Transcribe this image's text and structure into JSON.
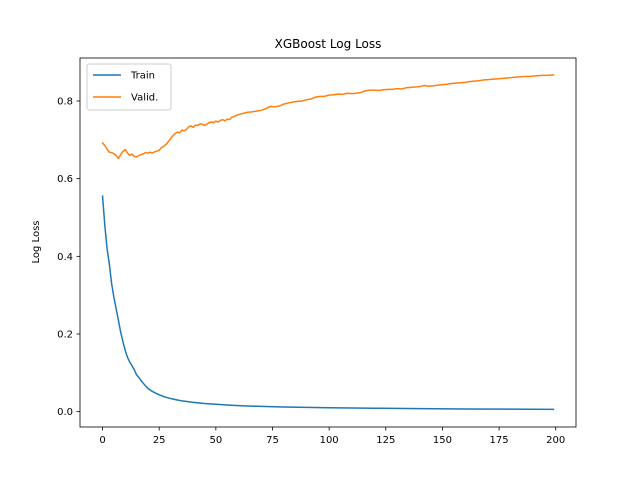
{
  "chart_data": {
    "type": "line",
    "title": "XGBoost Log Loss",
    "xlabel": "",
    "ylabel": "Log Loss",
    "xlim": [
      -9.95,
      208.95
    ],
    "ylim": [
      -0.0395,
      0.9107
    ],
    "xticks": [
      0,
      25,
      50,
      75,
      100,
      125,
      150,
      175,
      200
    ],
    "yticks": [
      0.0,
      0.2,
      0.4,
      0.6,
      0.8
    ],
    "ytick_labels": [
      "0.0",
      "0.2",
      "0.4",
      "0.6",
      "0.8"
    ],
    "grid": false,
    "legend_position": "top-left",
    "series": [
      {
        "name": "Train",
        "color": "#1f77b4",
        "points": [
          [
            0,
            0.555
          ],
          [
            1,
            0.48
          ],
          [
            2,
            0.42
          ],
          [
            3,
            0.38
          ],
          [
            4,
            0.33
          ],
          [
            5,
            0.295
          ],
          [
            6,
            0.265
          ],
          [
            7,
            0.235
          ],
          [
            8,
            0.205
          ],
          [
            9,
            0.18
          ],
          [
            10,
            0.158
          ],
          [
            11,
            0.14
          ],
          [
            12,
            0.128
          ],
          [
            13,
            0.118
          ],
          [
            14,
            0.108
          ],
          [
            15,
            0.095
          ],
          [
            16,
            0.088
          ],
          [
            17,
            0.08
          ],
          [
            18,
            0.073
          ],
          [
            19,
            0.066
          ],
          [
            20,
            0.06
          ],
          [
            22,
            0.052
          ],
          [
            24,
            0.046
          ],
          [
            26,
            0.041
          ],
          [
            28,
            0.037
          ],
          [
            30,
            0.034
          ],
          [
            33,
            0.03
          ],
          [
            36,
            0.027
          ],
          [
            40,
            0.024
          ],
          [
            45,
            0.021
          ],
          [
            50,
            0.019
          ],
          [
            55,
            0.017
          ],
          [
            60,
            0.0155
          ],
          [
            70,
            0.0135
          ],
          [
            80,
            0.012
          ],
          [
            90,
            0.011
          ],
          [
            100,
            0.01
          ],
          [
            120,
            0.0088
          ],
          [
            140,
            0.0078
          ],
          [
            160,
            0.007
          ],
          [
            180,
            0.0064
          ],
          [
            199,
            0.006
          ]
        ]
      },
      {
        "name": "Valid.",
        "color": "#ff7f0e",
        "points": [
          [
            0,
            0.692
          ],
          [
            1,
            0.685
          ],
          [
            2,
            0.676
          ],
          [
            3,
            0.668
          ],
          [
            4,
            0.667
          ],
          [
            5,
            0.664
          ],
          [
            6,
            0.66
          ],
          [
            7,
            0.652
          ],
          [
            8,
            0.662
          ],
          [
            9,
            0.67
          ],
          [
            10,
            0.675
          ],
          [
            11,
            0.666
          ],
          [
            12,
            0.66
          ],
          [
            13,
            0.663
          ],
          [
            14,
            0.657
          ],
          [
            15,
            0.656
          ],
          [
            16,
            0.659
          ],
          [
            17,
            0.662
          ],
          [
            18,
            0.664
          ],
          [
            19,
            0.667
          ],
          [
            20,
            0.666
          ],
          [
            21,
            0.668
          ],
          [
            22,
            0.666
          ],
          [
            23,
            0.669
          ],
          [
            24,
            0.671
          ],
          [
            25,
            0.673
          ],
          [
            26,
            0.68
          ],
          [
            27,
            0.683
          ],
          [
            28,
            0.688
          ],
          [
            29,
            0.695
          ],
          [
            30,
            0.703
          ],
          [
            31,
            0.71
          ],
          [
            32,
            0.716
          ],
          [
            33,
            0.72
          ],
          [
            34,
            0.718
          ],
          [
            35,
            0.725
          ],
          [
            36,
            0.723
          ],
          [
            37,
            0.727
          ],
          [
            38,
            0.733
          ],
          [
            39,
            0.736
          ],
          [
            40,
            0.732
          ],
          [
            41,
            0.738
          ],
          [
            42,
            0.737
          ],
          [
            43,
            0.741
          ],
          [
            44,
            0.74
          ],
          [
            45,
            0.737
          ],
          [
            46,
            0.74
          ],
          [
            47,
            0.744
          ],
          [
            48,
            0.746
          ],
          [
            49,
            0.744
          ],
          [
            50,
            0.748
          ],
          [
            51,
            0.746
          ],
          [
            52,
            0.75
          ],
          [
            53,
            0.752
          ],
          [
            54,
            0.749
          ],
          [
            55,
            0.753
          ],
          [
            56,
            0.752
          ],
          [
            57,
            0.758
          ],
          [
            58,
            0.76
          ],
          [
            60,
            0.765
          ],
          [
            62,
            0.768
          ],
          [
            64,
            0.771
          ],
          [
            66,
            0.772
          ],
          [
            68,
            0.774
          ],
          [
            70,
            0.776
          ],
          [
            72,
            0.78
          ],
          [
            74,
            0.786
          ],
          [
            76,
            0.785
          ],
          [
            78,
            0.787
          ],
          [
            80,
            0.792
          ],
          [
            82,
            0.795
          ],
          [
            84,
            0.797
          ],
          [
            86,
            0.799
          ],
          [
            88,
            0.8
          ],
          [
            90,
            0.803
          ],
          [
            92,
            0.805
          ],
          [
            94,
            0.81
          ],
          [
            96,
            0.812
          ],
          [
            98,
            0.812
          ],
          [
            100,
            0.815
          ],
          [
            102,
            0.816
          ],
          [
            104,
            0.818
          ],
          [
            106,
            0.817
          ],
          [
            108,
            0.82
          ],
          [
            110,
            0.819
          ],
          [
            112,
            0.82
          ],
          [
            114,
            0.822
          ],
          [
            116,
            0.826
          ],
          [
            118,
            0.828
          ],
          [
            120,
            0.828
          ],
          [
            122,
            0.827
          ],
          [
            124,
            0.829
          ],
          [
            126,
            0.83
          ],
          [
            128,
            0.83
          ],
          [
            130,
            0.832
          ],
          [
            132,
            0.831
          ],
          [
            134,
            0.834
          ],
          [
            136,
            0.835
          ],
          [
            138,
            0.836
          ],
          [
            140,
            0.837
          ],
          [
            142,
            0.84
          ],
          [
            144,
            0.838
          ],
          [
            146,
            0.839
          ],
          [
            148,
            0.841
          ],
          [
            150,
            0.842
          ],
          [
            152,
            0.843
          ],
          [
            154,
            0.845
          ],
          [
            156,
            0.846
          ],
          [
            158,
            0.847
          ],
          [
            160,
            0.848
          ],
          [
            162,
            0.85
          ],
          [
            164,
            0.851
          ],
          [
            166,
            0.852
          ],
          [
            168,
            0.854
          ],
          [
            170,
            0.855
          ],
          [
            172,
            0.856
          ],
          [
            174,
            0.857
          ],
          [
            176,
            0.858
          ],
          [
            178,
            0.859
          ],
          [
            180,
            0.86
          ],
          [
            182,
            0.861
          ],
          [
            184,
            0.862
          ],
          [
            186,
            0.863
          ],
          [
            188,
            0.863
          ],
          [
            190,
            0.864
          ],
          [
            192,
            0.865
          ],
          [
            194,
            0.866
          ],
          [
            196,
            0.866
          ],
          [
            198,
            0.867
          ],
          [
            199,
            0.867
          ]
        ]
      }
    ]
  }
}
